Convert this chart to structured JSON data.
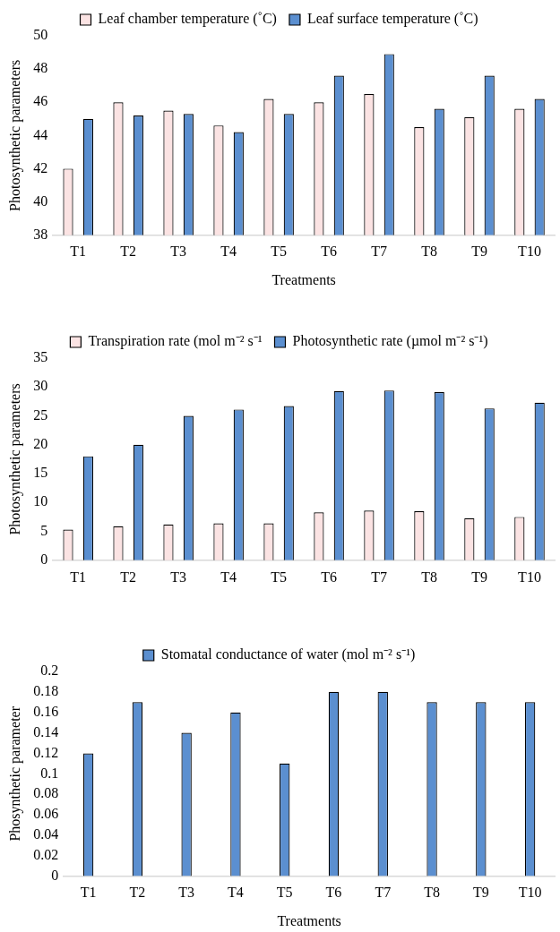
{
  "chart_data": [
    {
      "type": "bar",
      "xlabel": "Treatments",
      "ylabel": "Photosynthetic parameters",
      "categories": [
        "T1",
        "T2",
        "T3",
        "T4",
        "T5",
        "T6",
        "T7",
        "T8",
        "T9",
        "T10"
      ],
      "series": [
        {
          "name": "Leaf chamber temperature (˚C)",
          "color": "#fbe3e3",
          "values": [
            42,
            46,
            45.5,
            44.6,
            46.2,
            46,
            46.5,
            44.5,
            45.1,
            45.6
          ]
        },
        {
          "name": "Leaf surface temperature (˚C)",
          "color": "#5b8fd0",
          "values": [
            45,
            45.2,
            45.3,
            44.2,
            45.3,
            47.6,
            48.9,
            45.6,
            47.6,
            46.2
          ]
        }
      ],
      "ylim": [
        38,
        50
      ],
      "yticks": [
        38,
        40,
        42,
        44,
        46,
        48,
        50
      ],
      "grid": false,
      "legend": "top"
    },
    {
      "type": "bar",
      "ylabel": "Photosynthetic parameters",
      "categories": [
        "T1",
        "T2",
        "T3",
        "T4",
        "T5",
        "T6",
        "T7",
        "T8",
        "T9",
        "T10"
      ],
      "series": [
        {
          "name": "Transpiration rate (mol m⁻² s⁻¹",
          "color": "#fbe3e3",
          "values": [
            5.3,
            5.9,
            6.2,
            6.4,
            6.4,
            8.3,
            8.6,
            8.5,
            7.3,
            7.5
          ]
        },
        {
          "name": "Photosynthetic rate (µmol m⁻² s⁻¹)",
          "color": "#5b8fd0",
          "values": [
            18,
            20,
            25,
            26.1,
            26.7,
            29.3,
            29.4,
            29.1,
            26.3,
            27.3
          ]
        }
      ],
      "ylim": [
        0,
        35
      ],
      "yticks": [
        0,
        5,
        10,
        15,
        20,
        25,
        30,
        35
      ],
      "grid": false,
      "legend": "top"
    },
    {
      "type": "bar",
      "xlabel": "Treatments",
      "ylabel": "Phosynthetic parameter",
      "categories": [
        "T1",
        "T2",
        "T3",
        "T4",
        "T5",
        "T6",
        "T7",
        "T8",
        "T9",
        "T10"
      ],
      "series": [
        {
          "name": "Stomatal conductance of water (mol m⁻² s⁻¹)",
          "color": "#5b8fd0",
          "values": [
            0.12,
            0.17,
            0.14,
            0.16,
            0.11,
            0.18,
            0.18,
            0.17,
            0.17,
            0.17
          ]
        }
      ],
      "ylim": [
        0,
        0.2
      ],
      "yticks": [
        0,
        0.02,
        0.04,
        0.06,
        0.08,
        0.1,
        0.12,
        0.14,
        0.16,
        0.18,
        0.2
      ],
      "grid": false,
      "legend": "top"
    }
  ]
}
